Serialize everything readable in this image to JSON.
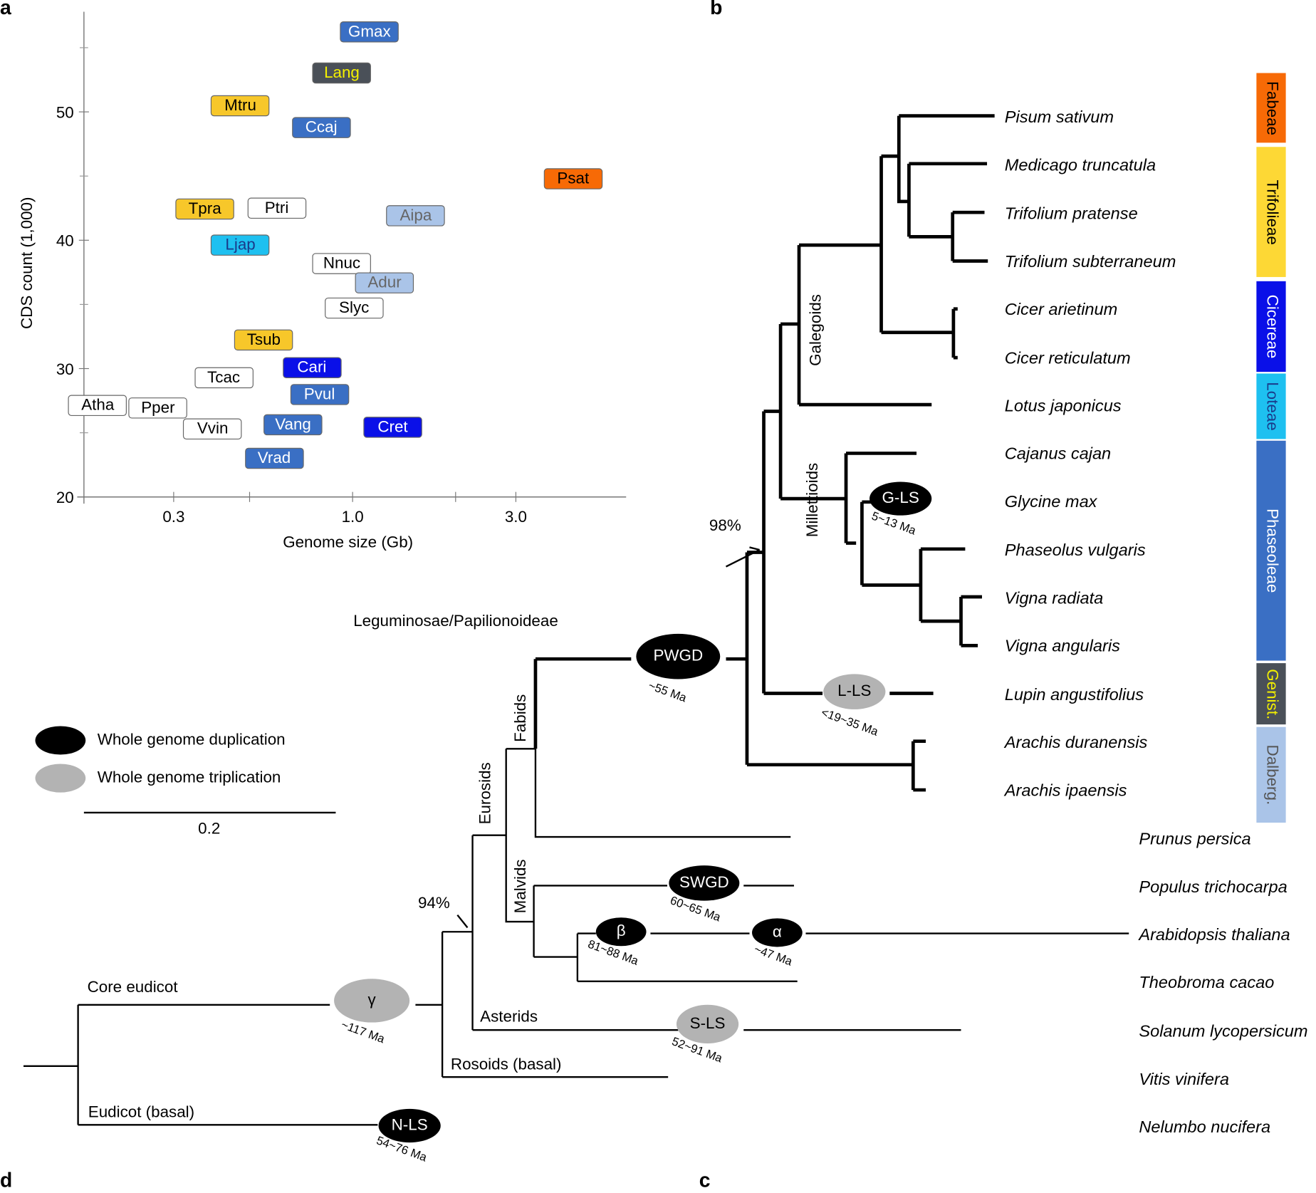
{
  "panels": {
    "a": "a",
    "b": "b",
    "c": "c",
    "d": "d"
  },
  "chart_data": {
    "type": "scatter",
    "xlabel": "Genome size (Gb)",
    "ylabel": "CDS count (1,000)",
    "xscale": "log",
    "xlim": [
      0.164,
      6.3
    ],
    "ylim": [
      20,
      57.8
    ],
    "xticks": [
      "0.3",
      "1.0",
      "3.0"
    ],
    "xtick_values": [
      0.3,
      1.0,
      3.0
    ],
    "yticks": [
      "20",
      "30",
      "40",
      "50"
    ],
    "ytick_values": [
      20,
      30,
      40,
      50
    ],
    "grid": false,
    "points": [
      {
        "label": "Gmax",
        "x": 1.12,
        "y": 56.2,
        "fill": "#3a6fc4",
        "text": "#ffffff"
      },
      {
        "label": "Lang",
        "x": 0.93,
        "y": 53.0,
        "fill": "#4a5058",
        "text": "#f4f000"
      },
      {
        "label": "Mtru",
        "x": 0.47,
        "y": 50.5,
        "fill": "#f7c72a",
        "text": "#000000"
      },
      {
        "label": "Ccaj",
        "x": 0.81,
        "y": 48.8,
        "fill": "#3a6fc4",
        "text": "#ffffff"
      },
      {
        "label": "Psat",
        "x": 4.41,
        "y": 44.8,
        "fill": "#f76a06",
        "text": "#000000"
      },
      {
        "label": "Tpra",
        "x": 0.37,
        "y": 42.4,
        "fill": "#f7c72a",
        "text": "#000000"
      },
      {
        "label": "Ptri",
        "x": 0.6,
        "y": 42.5,
        "fill": "#ffffff",
        "text": "#000000"
      },
      {
        "label": "Aipa",
        "x": 1.53,
        "y": 41.9,
        "fill": "#aac4e8",
        "text": "#666666"
      },
      {
        "label": "Ljap",
        "x": 0.47,
        "y": 39.6,
        "fill": "#1ec0f0",
        "text": "#1a3a8a"
      },
      {
        "label": "Nnuc",
        "x": 0.93,
        "y": 38.2,
        "fill": "#ffffff",
        "text": "#000000"
      },
      {
        "label": "Adur",
        "x": 1.24,
        "y": 36.7,
        "fill": "#aac4e8",
        "text": "#666666"
      },
      {
        "label": "Slyc",
        "x": 1.01,
        "y": 34.7,
        "fill": "#ffffff",
        "text": "#000000"
      },
      {
        "label": "Tsub",
        "x": 0.55,
        "y": 32.2,
        "fill": "#f7c72a",
        "text": "#000000"
      },
      {
        "label": "Cari",
        "x": 0.76,
        "y": 30.1,
        "fill": "#0a10e8",
        "text": "#ffffff"
      },
      {
        "label": "Tcac",
        "x": 0.42,
        "y": 29.3,
        "fill": "#ffffff",
        "text": "#000000"
      },
      {
        "label": "Pvul",
        "x": 0.8,
        "y": 28.0,
        "fill": "#3a6fc4",
        "text": "#ffffff"
      },
      {
        "label": "Atha",
        "x": 0.18,
        "y": 27.1,
        "fill": "#ffffff",
        "text": "#000000"
      },
      {
        "label": "Pper",
        "x": 0.27,
        "y": 26.9,
        "fill": "#ffffff",
        "text": "#000000"
      },
      {
        "label": "Vang",
        "x": 0.67,
        "y": 25.6,
        "fill": "#3a6fc4",
        "text": "#ffffff"
      },
      {
        "label": "Cret",
        "x": 1.31,
        "y": 25.4,
        "fill": "#0a10e8",
        "text": "#ffffff"
      },
      {
        "label": "Vvin",
        "x": 0.39,
        "y": 25.3,
        "fill": "#ffffff",
        "text": "#000000"
      },
      {
        "label": "Vrad",
        "x": 0.59,
        "y": 23.0,
        "fill": "#3a6fc4",
        "text": "#ffffff"
      }
    ]
  },
  "tree": {
    "clade_title": "Leguminosae/Papilionoideae",
    "species": [
      "Pisum sativum",
      "Medicago truncatula",
      "Trifolium pratense",
      "Trifolium subterraneum",
      "Cicer arietinum",
      "Cicer reticulatum",
      "Lotus japonicus",
      "Cajanus cajan",
      "Glycine max",
      "Phaseolus vulgaris",
      "Vigna radiata",
      "Vigna angularis",
      "Lupin angustifolius",
      "Arachis duranensis",
      "Arachis ipaensis",
      "Prunus persica",
      "Populus trichocarpa",
      "Arabidopsis thaliana",
      "Theobroma cacao",
      "Solanum lycopersicum",
      "Vitis vinifera",
      "Nelumbo nucifera"
    ],
    "tribes": [
      {
        "name": "Fabeae",
        "color": "#f76a06",
        "text": "#000000"
      },
      {
        "name": "Trifolieae",
        "color": "#fdd835",
        "text": "#000000"
      },
      {
        "name": "Cicereae",
        "color": "#0a10e8",
        "text": "#ffffff"
      },
      {
        "name": "Loteae",
        "color": "#1ec0f0",
        "text": "#1a3a8a"
      },
      {
        "name": "Phaseoleae",
        "color": "#3a6fc4",
        "text": "#ffffff"
      },
      {
        "name": "Genist.",
        "color": "#4a5058",
        "text": "#f4f000"
      },
      {
        "name": "Dalberg.",
        "color": "#aac4e8",
        "text": "#555555"
      }
    ],
    "clades": {
      "galegoids": "Galegoids",
      "millettioids": "Millettioids",
      "fabids": "Fabids",
      "eurosids": "Eurosids",
      "malvids": "Malvids",
      "asterids": "Asterids",
      "rosoids": "Rosoids (basal)",
      "core": "Core eudicot",
      "basal": "Eudicot (basal)"
    },
    "support": {
      "legume": "98%",
      "rosid": "94%"
    },
    "events": {
      "pwgd": {
        "name": "PWGD",
        "date": "~55 Ma"
      },
      "gls": {
        "name": "G-LS",
        "date": "5~13 Ma"
      },
      "lls": {
        "name": "L-LS",
        "date": "<19~35 Ma"
      },
      "swgd": {
        "name": "SWGD",
        "date": "60~65 Ma"
      },
      "beta": {
        "name": "β",
        "date": "81~88 Ma"
      },
      "alpha": {
        "name": "α",
        "date": "~47 Ma"
      },
      "gamma": {
        "name": "γ",
        "date": "~117 Ma"
      },
      "sls": {
        "name": "S-LS",
        "date": "52~91 Ma"
      },
      "nls": {
        "name": "N-LS",
        "date": "54~76 Ma"
      }
    },
    "legend": {
      "wgd": "Whole genome duplication",
      "wgt": "Whole genome triplication",
      "wgd_color": "#000000",
      "wgt_color": "#b3b3b3"
    },
    "scale": "0.2"
  }
}
